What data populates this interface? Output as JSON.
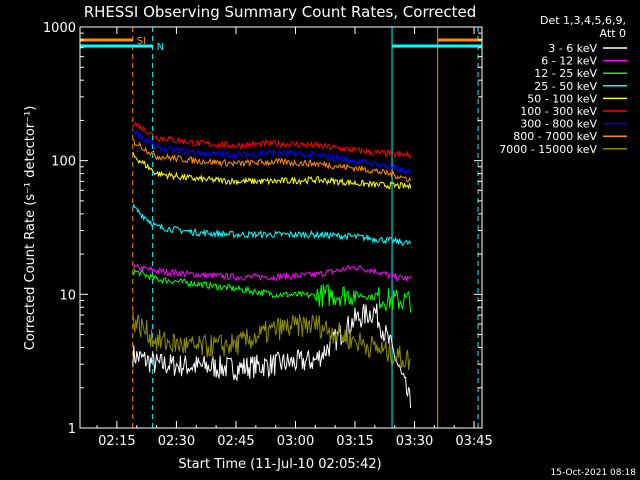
{
  "chart_data": {
    "type": "line",
    "title": "RHESSI Observing Summary Count Rates, Corrected",
    "xlabel": "Start Time (11-Jul-10 02:05:42)",
    "ylabel": "Corrected Count Rate (s⁻¹ detector⁻¹)",
    "yscale": "log",
    "xlim": [
      "02:05:42",
      "03:47"
    ],
    "ylim": [
      1,
      1000
    ],
    "x_ticks": [
      "02:15",
      "02:30",
      "02:45",
      "03:00",
      "03:15",
      "03:30",
      "03:45"
    ],
    "y_ticks": [
      "1",
      "10",
      "100",
      "1000"
    ],
    "legend_header": [
      "Det 1,3,4,5,6,9,",
      "Att 0"
    ],
    "legend_position": "top-right-outside",
    "footer": "15-Oct-2021 08:18",
    "flags": [
      {
        "label": "SI",
        "color": "#ff8c00",
        "start": "02:05:42",
        "end": "02:19:00",
        "restart": "03:35:50",
        "restart_end": "03:47"
      },
      {
        "label": "N",
        "color": "#00ffff",
        "start": "02:05:42",
        "end": "02:24:00",
        "restart": "03:24:20",
        "restart_end": "03:47"
      }
    ],
    "night_bounds": [
      {
        "time": "02:05:42",
        "color": "#00ffff",
        "style": "solid"
      },
      {
        "time": "02:19:00",
        "color": "#ff8c00",
        "style": "dashed"
      },
      {
        "time": "02:24:00",
        "color": "#00ffff",
        "style": "dashed"
      },
      {
        "time": "03:24:20",
        "color": "#00ffff",
        "style": "solid"
      },
      {
        "time": "03:35:50",
        "color": "#ff8c00",
        "style": "solid"
      },
      {
        "time": "03:46:00",
        "color": "#00ffff",
        "style": "dashed"
      }
    ],
    "x": [
      "02:19",
      "02:25",
      "02:35",
      "02:45",
      "02:55",
      "03:05",
      "03:15",
      "03:20",
      "03:25",
      "03:29"
    ],
    "series": [
      {
        "name": "3 - 6 keV",
        "color": "#ffffff",
        "values": [
          3.5,
          3.0,
          2.9,
          2.8,
          3.0,
          3.2,
          6.5,
          7.5,
          3.5,
          1.5
        ]
      },
      {
        "name": "6 - 12 keV",
        "color": "#ff00ff",
        "values": [
          16,
          15,
          14,
          13.5,
          13.5,
          14,
          16,
          15,
          13.5,
          13
        ]
      },
      {
        "name": "12 - 25 keV",
        "color": "#00ff00",
        "values": [
          15,
          13,
          12,
          11,
          10,
          9.8,
          10,
          9.5,
          9,
          9
        ]
      },
      {
        "name": "25 - 50 keV",
        "color": "#00ffff",
        "values": [
          45,
          32,
          29,
          28,
          28,
          28,
          27,
          26,
          25,
          24
        ]
      },
      {
        "name": "50 - 100 keV",
        "color": "#ffff00",
        "values": [
          110,
          80,
          73,
          70,
          70,
          72,
          68,
          66,
          65,
          64
        ]
      },
      {
        "name": "100 - 300 keV",
        "color": "#ff0000",
        "values": [
          195,
          150,
          135,
          130,
          135,
          130,
          120,
          115,
          112,
          110
        ]
      },
      {
        "name": "300 - 800 keV",
        "color": "#0000ff",
        "values": [
          170,
          125,
          115,
          110,
          115,
          110,
          100,
          95,
          88,
          80
        ]
      },
      {
        "name": "800 - 7000 keV",
        "color": "#ff8c00",
        "values": [
          140,
          108,
          100,
          95,
          98,
          95,
          88,
          84,
          78,
          72
        ]
      },
      {
        "name": "7000 - 15000 keV",
        "color": "#8b8b00",
        "values": [
          6.5,
          4.5,
          4.0,
          4.2,
          5.5,
          6.0,
          4.5,
          4.0,
          3.5,
          3.2
        ]
      }
    ]
  }
}
